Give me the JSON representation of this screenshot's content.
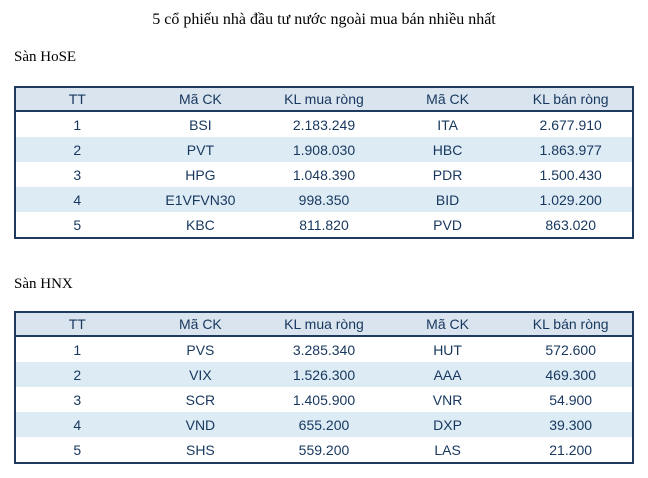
{
  "page": {
    "title": "5 cổ phiếu nhà đầu tư nước ngoài mua bán nhiều nhất"
  },
  "colors": {
    "table_border": "#1f3a5f",
    "header_background": "#d9e4ee",
    "alt_row_background": "#dcebf4",
    "table_text": "#17375e",
    "title_text": "#000000"
  },
  "tables": [
    {
      "section": "Sàn HoSE",
      "headers": [
        "TT",
        "Mã CK",
        "KL mua ròng",
        "Mã CK",
        "KL bán ròng"
      ],
      "rows": [
        [
          "1",
          "BSI",
          "2.183.249",
          "ITA",
          "2.677.910"
        ],
        [
          "2",
          "PVT",
          "1.908.030",
          "HBC",
          "1.863.977"
        ],
        [
          "3",
          "HPG",
          "1.048.390",
          "PDR",
          "1.500.430"
        ],
        [
          "4",
          "E1VFVN30",
          "998.350",
          "BID",
          "1.029.200"
        ],
        [
          "5",
          "KBC",
          "811.820",
          "PVD",
          "863.020"
        ]
      ]
    },
    {
      "section": "Sàn HNX",
      "headers": [
        "TT",
        "Mã CK",
        "KL mua ròng",
        "Mã CK",
        "KL bán ròng"
      ],
      "rows": [
        [
          "1",
          "PVS",
          "3.285.340",
          "HUT",
          "572.600"
        ],
        [
          "2",
          "VIX",
          "1.526.300",
          "AAA",
          "469.300"
        ],
        [
          "3",
          "SCR",
          "1.405.900",
          "VNR",
          "54.900"
        ],
        [
          "4",
          "VND",
          "655.200",
          "DXP",
          "39.300"
        ],
        [
          "5",
          "SHS",
          "559.200",
          "LAS",
          "21.200"
        ]
      ]
    }
  ]
}
